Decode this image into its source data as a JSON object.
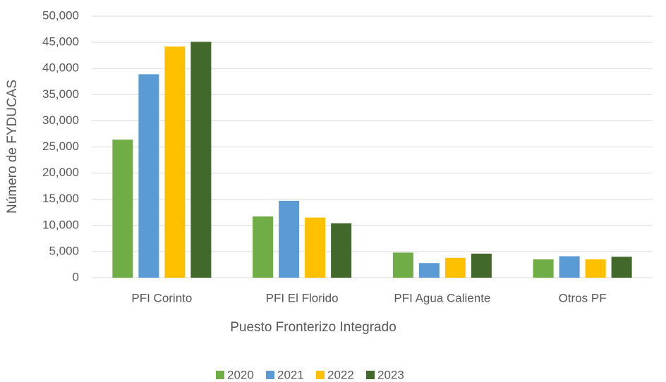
{
  "chart_data": {
    "type": "bar",
    "x_label": "Puesto Fronterizo Integrado",
    "y_label": "Número de FYDUCAS",
    "categories": [
      "PFI Corinto",
      "PFI El Florido",
      "PFI Agua Caliente",
      "Otros PF"
    ],
    "series": [
      {
        "name": "2020",
        "color": "#70ad47",
        "values": [
          26400,
          11700,
          4800,
          3500
        ]
      },
      {
        "name": "2021",
        "color": "#5b9bd5",
        "values": [
          38900,
          14700,
          2800,
          4100
        ]
      },
      {
        "name": "2022",
        "color": "#ffc000",
        "values": [
          44200,
          11500,
          3800,
          3500
        ]
      },
      {
        "name": "2023",
        "color": "#43682b",
        "values": [
          45100,
          10400,
          4600,
          4000
        ]
      }
    ],
    "ylim": [
      0,
      50000
    ],
    "yticks": [
      0,
      {
        "value": 5000,
        "label": "5,000"
      },
      {
        "value": 10000,
        "label": "10,000"
      },
      {
        "value": 15000,
        "label": "15,000"
      },
      {
        "value": 20000,
        "label": "20,000"
      },
      {
        "value": 25000,
        "label": "25,000"
      },
      {
        "value": 30000,
        "label": "30,000"
      },
      {
        "value": 35000,
        "label": "35,000"
      },
      {
        "value": 40000,
        "label": "40,000"
      },
      {
        "value": 45000,
        "label": "45,000"
      },
      {
        "value": 50000,
        "label": "50,000"
      }
    ],
    "grid": true,
    "legend": "bottom"
  }
}
